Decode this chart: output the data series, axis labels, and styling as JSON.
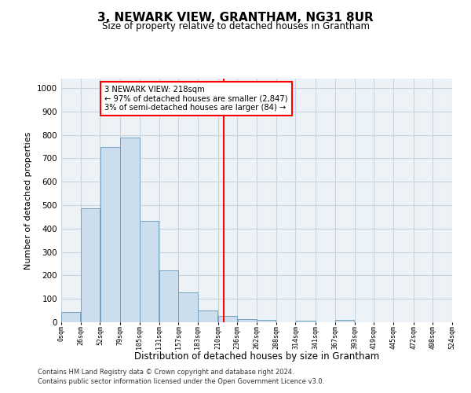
{
  "title": "3, NEWARK VIEW, GRANTHAM, NG31 8UR",
  "subtitle": "Size of property relative to detached houses in Grantham",
  "xlabel": "Distribution of detached houses by size in Grantham",
  "ylabel": "Number of detached properties",
  "bar_color": "#ccdded",
  "bar_edge_color": "#6699bb",
  "grid_color": "#c8d4e0",
  "background_color": "#edf2f7",
  "property_line_x": 218,
  "property_line_color": "red",
  "annotation_text": "3 NEWARK VIEW: 218sqm\n← 97% of detached houses are smaller (2,847)\n3% of semi-detached houses are larger (84) →",
  "annotation_box_color": "red",
  "annotation_text_color": "black",
  "footnote1": "Contains HM Land Registry data © Crown copyright and database right 2024.",
  "footnote2": "Contains public sector information licensed under the Open Government Licence v3.0.",
  "bin_edges": [
    0,
    26,
    52,
    79,
    105,
    131,
    157,
    183,
    210,
    236,
    262,
    288,
    314,
    341,
    367,
    393,
    419,
    445,
    472,
    498,
    524
  ],
  "bin_labels": [
    "0sqm",
    "26sqm",
    "52sqm",
    "79sqm",
    "105sqm",
    "131sqm",
    "157sqm",
    "183sqm",
    "210sqm",
    "236sqm",
    "262sqm",
    "288sqm",
    "314sqm",
    "341sqm",
    "367sqm",
    "393sqm",
    "419sqm",
    "445sqm",
    "472sqm",
    "498sqm",
    "524sqm"
  ],
  "bar_heights": [
    42,
    485,
    748,
    790,
    432,
    221,
    128,
    50,
    28,
    15,
    10,
    0,
    8,
    0,
    10,
    0,
    0,
    0,
    0,
    0
  ],
  "ylim": [
    0,
    1040
  ],
  "yticks": [
    0,
    100,
    200,
    300,
    400,
    500,
    600,
    700,
    800,
    900,
    1000
  ]
}
